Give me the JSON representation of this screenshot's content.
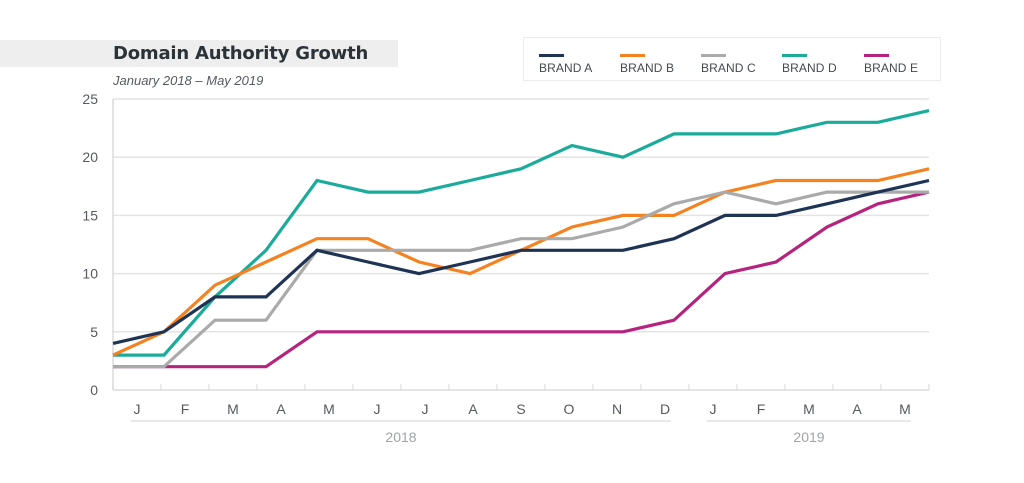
{
  "chart_data": {
    "type": "line",
    "title": "Domain Authority Growth",
    "subtitle": "January 2018 – May 2019",
    "xlabel": "",
    "ylabel": "",
    "ylim": [
      0,
      25
    ],
    "yticks": [
      0,
      5,
      10,
      15,
      20,
      25
    ],
    "grid": true,
    "legend_position": "top-right",
    "categories": [
      "J",
      "F",
      "M",
      "A",
      "M",
      "J",
      "J",
      "A",
      "S",
      "O",
      "N",
      "D",
      "J",
      "F",
      "M",
      "A",
      "M"
    ],
    "year_groups": [
      {
        "label": "2018",
        "start": 0,
        "end": 11
      },
      {
        "label": "2019",
        "start": 12,
        "end": 16
      }
    ],
    "series": [
      {
        "name": "BRAND A",
        "color": "#1f3354",
        "values": [
          4,
          5,
          8,
          8,
          12,
          11,
          10,
          11,
          12,
          12,
          12,
          13,
          15,
          15,
          16,
          17,
          18
        ]
      },
      {
        "name": "BRAND B",
        "color": "#f58220",
        "values": [
          3,
          5,
          9,
          11,
          13,
          13,
          11,
          10,
          12,
          14,
          15,
          15,
          17,
          18,
          18,
          18,
          19
        ]
      },
      {
        "name": "BRAND C",
        "color": "#aaaaaa",
        "values": [
          2,
          2,
          6,
          6,
          12,
          12,
          12,
          12,
          13,
          13,
          14,
          16,
          17,
          16,
          17,
          17,
          17
        ]
      },
      {
        "name": "BRAND D",
        "color": "#1aab9b",
        "values": [
          3,
          3,
          8,
          12,
          18,
          17,
          17,
          18,
          19,
          21,
          20,
          22,
          22,
          22,
          23,
          23,
          24
        ]
      },
      {
        "name": "BRAND E",
        "color": "#b5237e",
        "values": [
          2,
          2,
          2,
          2,
          5,
          5,
          5,
          5,
          5,
          5,
          5,
          6,
          10,
          11,
          14,
          16,
          17
        ]
      }
    ]
  }
}
